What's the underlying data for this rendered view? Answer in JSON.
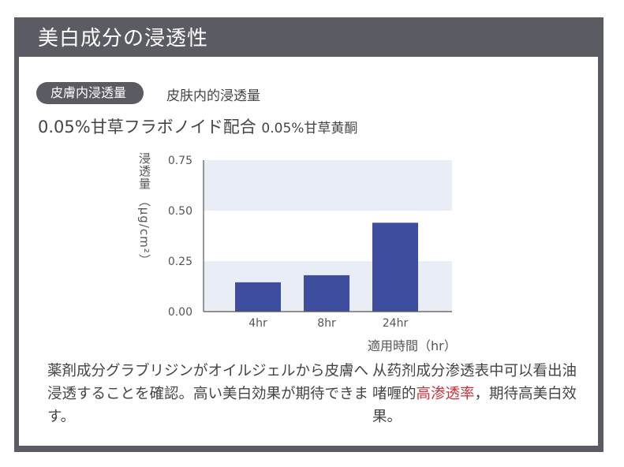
{
  "header": {
    "title": "美白成分の浸透性"
  },
  "badge": {
    "label": "皮膚内浸透量",
    "translation": "皮肤内的浸透量"
  },
  "formula": {
    "ja": "0.05%甘草フラボノイド配合",
    "cn": "0.05%甘草黄酮"
  },
  "chart_data": {
    "type": "bar",
    "categories": [
      "4hr",
      "8hr",
      "24hr"
    ],
    "values": [
      0.145,
      0.18,
      0.44
    ],
    "ylabel": "浸透量 （μg/cm²）",
    "xlabel": "適用時間（hr）",
    "ylim": [
      0,
      0.75
    ],
    "yticks": [
      "0.00",
      "0.25",
      "0.50",
      "0.75"
    ],
    "bar_color": "#3f4d9e",
    "band_color": "#e9edf6",
    "grid": "alternating horizontal bands"
  },
  "description": {
    "ja": "薬剤成分グラブリジンがオイルジェルから皮膚へ浸透することを確認。高い美白効果が期待できます。",
    "cn_before": "从药剂成分渗透表中可以看出油啫喱的",
    "cn_highlight": "高渗透率",
    "cn_after": "，期待高美白效果。",
    "highlight_color": "#c8323a"
  }
}
